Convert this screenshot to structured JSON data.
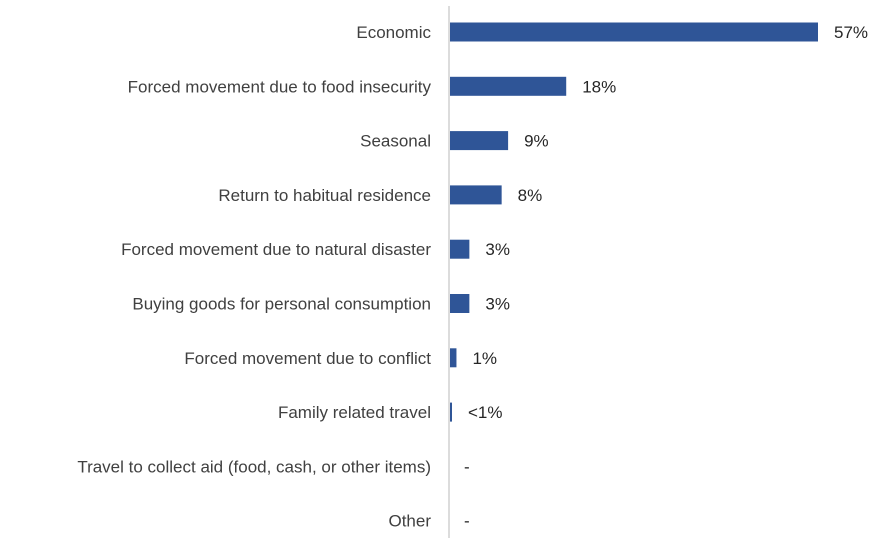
{
  "chart_data": {
    "type": "bar",
    "orientation": "horizontal",
    "categories": [
      "Economic",
      "Forced movement due to food insecurity",
      "Seasonal",
      "Return to habitual residence",
      "Forced movement due to natural disaster",
      "Buying goods for personal consumption",
      "Forced movement due to conflict",
      "Family related travel",
      "Travel to collect aid (food, cash, or other items)",
      "Other"
    ],
    "values": [
      57,
      18,
      9,
      8,
      3,
      3,
      1,
      0.3,
      0,
      0
    ],
    "value_labels": [
      "57%",
      "18%",
      "9%",
      "8%",
      "3%",
      "3%",
      "1%",
      "<1%",
      "-",
      "-"
    ],
    "xlim": [
      0,
      60
    ],
    "grid": false,
    "legend": "none",
    "bar_color": "#2f5597"
  }
}
